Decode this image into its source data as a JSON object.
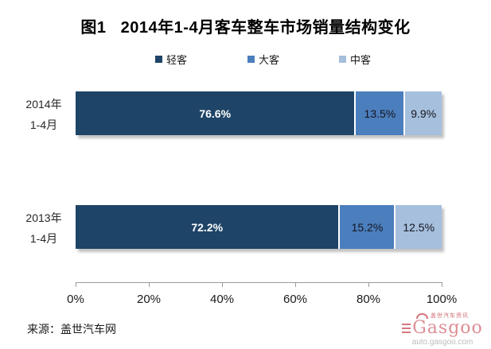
{
  "title": "图1   2014年1-4月客车整车市场销量结构变化",
  "legend": {
    "position": "top",
    "items": [
      {
        "label": "轻客",
        "color": "#1e4467"
      },
      {
        "label": "大客",
        "color": "#4b7ebc"
      },
      {
        "label": "中客",
        "color": "#a5bfdd"
      }
    ]
  },
  "chart_data": {
    "type": "bar",
    "orientation": "horizontal",
    "stacked": true,
    "title": "图1 2014年1-4月客车整车市场销量结构变化",
    "categories": [
      "2014年 1-4月",
      "2013年 1-4月"
    ],
    "categories_lines": [
      [
        "2014年",
        "1-4月"
      ],
      [
        "2013年",
        "1-4月"
      ]
    ],
    "series": [
      {
        "name": "轻客",
        "values": [
          76.6,
          72.2
        ],
        "color": "#1e4467",
        "label_color": "#ffffff",
        "label_bold": true
      },
      {
        "name": "大客",
        "values": [
          13.5,
          15.2
        ],
        "color": "#4b7ebc",
        "label_color": "#15151f",
        "label_bold": false
      },
      {
        "name": "中客",
        "values": [
          9.9,
          12.5
        ],
        "color": "#a5bfdd",
        "label_color": "#15151f",
        "label_bold": false
      }
    ],
    "value_suffix": "%",
    "xlim": [
      0,
      100
    ],
    "x_ticks": [
      "0%",
      "20%",
      "40%",
      "60%",
      "80%",
      "100%"
    ],
    "grid": false,
    "legend_position": "top"
  },
  "source": {
    "text": "来源：盖世汽车网"
  },
  "logo": {
    "top_text": "盖世汽车资讯",
    "name": "Gasgoo",
    "domain": "auto.gasgoo.com"
  }
}
